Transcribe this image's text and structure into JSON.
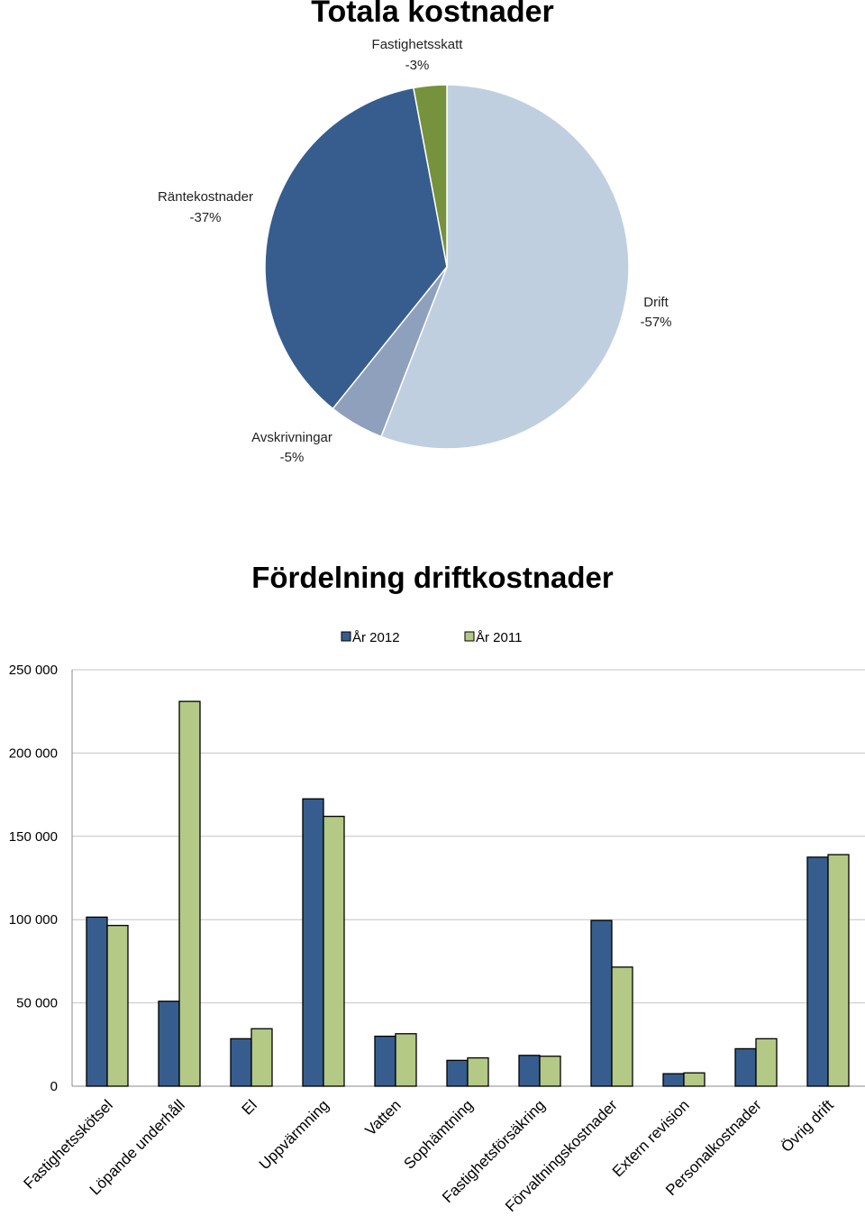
{
  "chart_data": [
    {
      "type": "pie",
      "title": "Totala kostnader",
      "slices": [
        {
          "label": "Drift",
          "pct_label": "-57%",
          "value": 57,
          "color": "#c0cfe0"
        },
        {
          "label": "Avskrivningar",
          "pct_label": "-5%",
          "value": 5,
          "color": "#8fa0bc"
        },
        {
          "label": "Räntekostnader",
          "pct_label": "-37%",
          "value": 37,
          "color": "#365d8e"
        },
        {
          "label": "Fastighetsskatt",
          "pct_label": "-3%",
          "value": 3,
          "color": "#76923c"
        }
      ]
    },
    {
      "type": "bar",
      "title": "Fördelning driftkostnader",
      "xlabel": "",
      "ylabel": "",
      "ylim": [
        0,
        250000
      ],
      "yticks": [
        {
          "value": 0,
          "label": "0"
        },
        {
          "value": 50000,
          "label": "50 000"
        },
        {
          "value": 100000,
          "label": "100 000"
        },
        {
          "value": 150000,
          "label": "150 000"
        },
        {
          "value": 200000,
          "label": "200 000"
        },
        {
          "value": 250000,
          "label": "250 000"
        }
      ],
      "grid": true,
      "legend_position": "top",
      "categories": [
        "Fastighetsskötsel",
        "Löpande underhåll",
        "El",
        "Uppvärmning",
        "Vatten",
        "Sophämtning",
        "Fastighetsförsäkring",
        "Förvaltningskostnader",
        "Extern revision",
        "Personalkostnader",
        "Övrig drift"
      ],
      "series": [
        {
          "name": "År 2012",
          "color": "#365d8e",
          "values": [
            101500,
            51000,
            28500,
            172500,
            30000,
            15500,
            18500,
            99500,
            7500,
            22500,
            137500
          ]
        },
        {
          "name": "År 2011",
          "color": "#b3c985",
          "values": [
            96500,
            231000,
            34500,
            162000,
            31500,
            17000,
            18000,
            71500,
            8000,
            28500,
            139000
          ]
        }
      ]
    }
  ]
}
